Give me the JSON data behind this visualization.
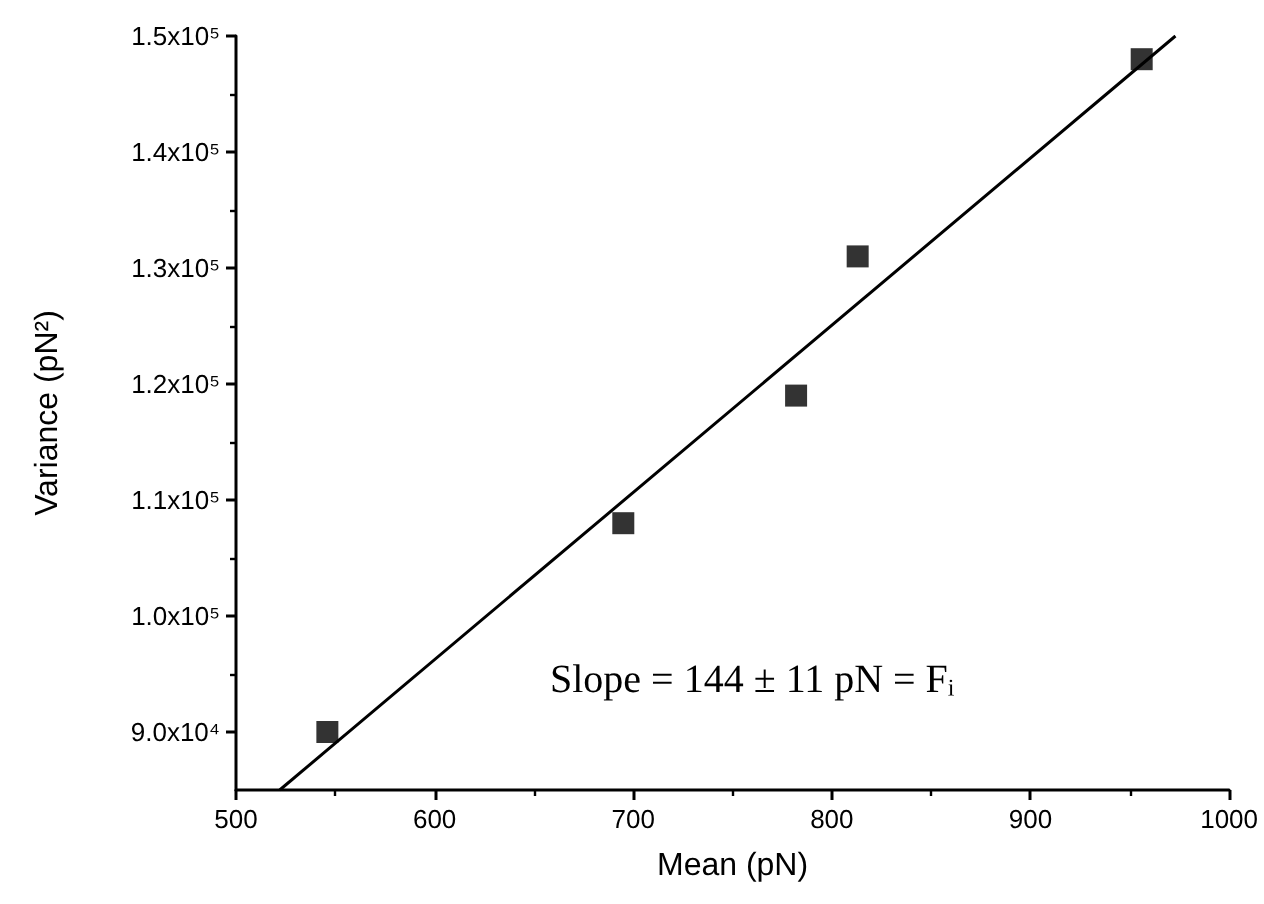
{
  "chart_data": {
    "type": "scatter",
    "xlabel": "Mean (pN)",
    "ylabel": "Variance (pN²)",
    "annotations": [
      "Slope = 144 ± 11 pN = Fᵢ"
    ],
    "x": [
      546,
      695,
      782,
      813,
      956
    ],
    "series": [
      {
        "color": "#000000",
        "marker": "square",
        "values": [
          90000,
          108000,
          119000,
          131000,
          148000
        ]
      },
      {
        "type": "line",
        "color": "#000000",
        "marker": "none",
        "line_style": "solid",
        "x": [
          522,
          973
        ],
        "values": [
          85000,
          150000
        ]
      }
    ],
    "xlim": [
      500,
      1000
    ],
    "xticks": [
      500,
      600,
      700,
      800,
      900,
      1000
    ],
    "ylim": [
      85000,
      150000
    ],
    "yticks": [
      {
        "value": 90000,
        "label": "9.0x10⁴"
      },
      {
        "value": 100000,
        "label": "1.0x10⁵"
      },
      {
        "value": 110000,
        "label": "1.1x10⁵"
      },
      {
        "value": 120000,
        "label": "1.2x10⁵"
      },
      {
        "value": 130000,
        "label": "1.3x10⁵"
      },
      {
        "value": 140000,
        "label": "1.4x10⁵"
      },
      {
        "value": 150000,
        "label": "1.5x10⁵"
      }
    ],
    "grid": false
  }
}
